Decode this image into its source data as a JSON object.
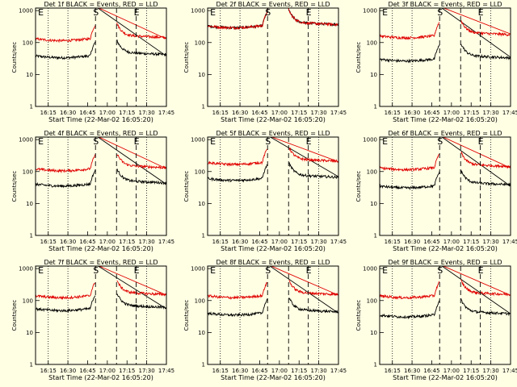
{
  "figure": {
    "background": "#ffffe4",
    "colors": {
      "events": "#000000",
      "lld": "#e00000"
    }
  },
  "chart_data": [
    {
      "type": "line",
      "title": "Det 1f BLACK = Events, RED = LLD",
      "xlabel": "Start Time (22-Mar-02 16:05:20)",
      "ylabel": "Counts/sec",
      "x_ticks": [
        "16:15",
        "16:30",
        "16:45",
        "17:00",
        "17:15",
        "17:30",
        "17:45"
      ],
      "y_ticks": [
        "1",
        "10",
        "100",
        "1000"
      ],
      "ylim": [
        1,
        1200
      ],
      "yscale": "log",
      "markers": [
        {
          "label": "E",
          "time": "16:06"
        },
        {
          "label": "S",
          "time": "16:51"
        },
        {
          "label": "E",
          "time": "17:22"
        }
      ],
      "gaps": [
        [
          "16:52",
          "17:07"
        ]
      ],
      "series": [
        {
          "name": "Events",
          "color": "#000000",
          "level": 38,
          "peak": 100
        },
        {
          "name": "LLD",
          "color": "#e00000",
          "level": 130,
          "peak": 1200
        }
      ]
    },
    {
      "type": "line",
      "title": "Det 2f BLACK = Events, RED = LLD",
      "xlabel": "Start Time (22-Mar-02 16:05:20)",
      "ylabel": "Counts/sec",
      "x_ticks": [
        "16:15",
        "16:30",
        "16:45",
        "17:00",
        "17:15",
        "17:30",
        "17:45"
      ],
      "y_ticks": [
        "1",
        "10",
        "100",
        "1000"
      ],
      "ylim": [
        1,
        1200
      ],
      "yscale": "log",
      "markers": [
        {
          "label": "E",
          "time": "16:06"
        },
        {
          "label": "S",
          "time": "16:51"
        },
        {
          "label": "E",
          "time": "17:22"
        }
      ],
      "gaps": [],
      "series": [
        {
          "name": "Events",
          "color": "#000000",
          "level": 330,
          "peak": 1200
        },
        {
          "name": "LLD",
          "color": "#e00000",
          "level": 330,
          "peak": 1200
        }
      ]
    },
    {
      "type": "line",
      "title": "Det 3f BLACK = Events, RED = LLD",
      "xlabel": "Start Time (22-Mar-02 16:05:20)",
      "ylabel": "Counts/sec",
      "x_ticks": [
        "16:15",
        "16:30",
        "16:45",
        "17:00",
        "17:15",
        "17:30",
        "17:45"
      ],
      "y_ticks": [
        "1",
        "10",
        "100",
        "1000"
      ],
      "ylim": [
        1,
        1200
      ],
      "yscale": "log",
      "markers": [
        {
          "label": "E",
          "time": "16:06"
        },
        {
          "label": "S",
          "time": "16:51"
        },
        {
          "label": "E",
          "time": "17:22"
        }
      ],
      "gaps": [
        [
          "16:52",
          "17:07"
        ]
      ],
      "series": [
        {
          "name": "Events",
          "color": "#000000",
          "level": 30,
          "peak": 100
        },
        {
          "name": "LLD",
          "color": "#e00000",
          "level": 160,
          "peak": 1200
        }
      ]
    },
    {
      "type": "line",
      "title": "Det 4f BLACK = Events, RED = LLD",
      "xlabel": "Start Time (22-Mar-02 16:05:20)",
      "ylabel": "Counts/sec",
      "x_ticks": [
        "16:15",
        "16:30",
        "16:45",
        "17:00",
        "17:15",
        "17:30",
        "17:45"
      ],
      "y_ticks": [
        "1",
        "10",
        "100",
        "1000"
      ],
      "ylim": [
        1,
        1200
      ],
      "yscale": "log",
      "markers": [
        {
          "label": "E",
          "time": "16:06"
        },
        {
          "label": "S",
          "time": "16:51"
        },
        {
          "label": "E",
          "time": "17:22"
        }
      ],
      "gaps": [
        [
          "16:52",
          "17:07"
        ]
      ],
      "series": [
        {
          "name": "Events",
          "color": "#000000",
          "level": 40,
          "peak": 100
        },
        {
          "name": "LLD",
          "color": "#e00000",
          "level": 120,
          "peak": 1200
        }
      ]
    },
    {
      "type": "line",
      "title": "Det 5f BLACK = Events, RED = LLD",
      "xlabel": "Start Time (22-Mar-02 16:05:20)",
      "ylabel": "Counts/sec",
      "x_ticks": [
        "16:15",
        "16:30",
        "16:45",
        "17:00",
        "17:15",
        "17:30",
        "17:45"
      ],
      "y_ticks": [
        "1",
        "10",
        "100",
        "1000"
      ],
      "ylim": [
        1,
        1200
      ],
      "yscale": "log",
      "markers": [
        {
          "label": "E",
          "time": "16:06"
        },
        {
          "label": "S",
          "time": "16:51"
        },
        {
          "label": "E",
          "time": "17:22"
        }
      ],
      "gaps": [
        [
          "16:52",
          "17:07"
        ]
      ],
      "series": [
        {
          "name": "Events",
          "color": "#000000",
          "level": 60,
          "peak": 100
        },
        {
          "name": "LLD",
          "color": "#e00000",
          "level": 190,
          "peak": 1200
        }
      ]
    },
    {
      "type": "line",
      "title": "Det 6f BLACK = Events, RED = LLD",
      "xlabel": "Start Time (22-Mar-02 16:05:20)",
      "ylabel": "Counts/sec",
      "x_ticks": [
        "16:15",
        "16:30",
        "16:45",
        "17:00",
        "17:15",
        "17:30",
        "17:45"
      ],
      "y_ticks": [
        "1",
        "10",
        "100",
        "1000"
      ],
      "ylim": [
        1,
        1200
      ],
      "yscale": "log",
      "markers": [
        {
          "label": "E",
          "time": "16:06"
        },
        {
          "label": "S",
          "time": "16:51"
        },
        {
          "label": "E",
          "time": "17:22"
        }
      ],
      "gaps": [
        [
          "16:52",
          "17:07"
        ]
      ],
      "series": [
        {
          "name": "Events",
          "color": "#000000",
          "level": 35,
          "peak": 100
        },
        {
          "name": "LLD",
          "color": "#e00000",
          "level": 130,
          "peak": 1200
        }
      ]
    },
    {
      "type": "line",
      "title": "Det 7f BLACK = Events, RED = LLD",
      "xlabel": "Start Time (22-Mar-02 16:05:20)",
      "ylabel": "Counts/sec",
      "x_ticks": [
        "16:15",
        "16:30",
        "16:45",
        "17:00",
        "17:15",
        "17:30",
        "17:45"
      ],
      "y_ticks": [
        "1",
        "10",
        "100",
        "1000"
      ],
      "ylim": [
        1,
        1200
      ],
      "yscale": "log",
      "markers": [
        {
          "label": "E",
          "time": "16:06"
        },
        {
          "label": "S",
          "time": "16:51"
        },
        {
          "label": "E",
          "time": "17:22"
        }
      ],
      "gaps": [
        [
          "16:52",
          "17:07"
        ]
      ],
      "series": [
        {
          "name": "Events",
          "color": "#000000",
          "level": 55,
          "peak": 100
        },
        {
          "name": "LLD",
          "color": "#e00000",
          "level": 140,
          "peak": 1200
        }
      ]
    },
    {
      "type": "line",
      "title": "Det 8f BLACK = Events, RED = LLD",
      "xlabel": "Start Time (22-Mar-02 16:05:20)",
      "ylabel": "Counts/sec",
      "x_ticks": [
        "16:15",
        "16:30",
        "16:45",
        "17:00",
        "17:15",
        "17:30",
        "17:45"
      ],
      "y_ticks": [
        "1",
        "10",
        "100",
        "1000"
      ],
      "ylim": [
        1,
        1200
      ],
      "yscale": "log",
      "markers": [
        {
          "label": "E",
          "time": "16:06"
        },
        {
          "label": "S",
          "time": "16:51"
        },
        {
          "label": "E",
          "time": "17:22"
        }
      ],
      "gaps": [
        [
          "16:52",
          "17:07"
        ]
      ],
      "series": [
        {
          "name": "Events",
          "color": "#000000",
          "level": 40,
          "peak": 100
        },
        {
          "name": "LLD",
          "color": "#e00000",
          "level": 140,
          "peak": 1200
        }
      ]
    },
    {
      "type": "line",
      "title": "Det 9f BLACK = Events, RED = LLD",
      "xlabel": "Start Time (22-Mar-02 16:05:20)",
      "ylabel": "Counts/sec",
      "x_ticks": [
        "16:15",
        "16:30",
        "16:45",
        "17:00",
        "17:15",
        "17:30",
        "17:45"
      ],
      "y_ticks": [
        "1",
        "10",
        "100",
        "1000"
      ],
      "ylim": [
        1,
        1200
      ],
      "yscale": "log",
      "markers": [
        {
          "label": "E",
          "time": "16:06"
        },
        {
          "label": "S",
          "time": "16:51"
        },
        {
          "label": "E",
          "time": "17:22"
        }
      ],
      "gaps": [
        [
          "16:52",
          "17:07"
        ]
      ],
      "series": [
        {
          "name": "Events",
          "color": "#000000",
          "level": 35,
          "peak": 100
        },
        {
          "name": "LLD",
          "color": "#e00000",
          "level": 140,
          "peak": 1200
        }
      ]
    }
  ]
}
